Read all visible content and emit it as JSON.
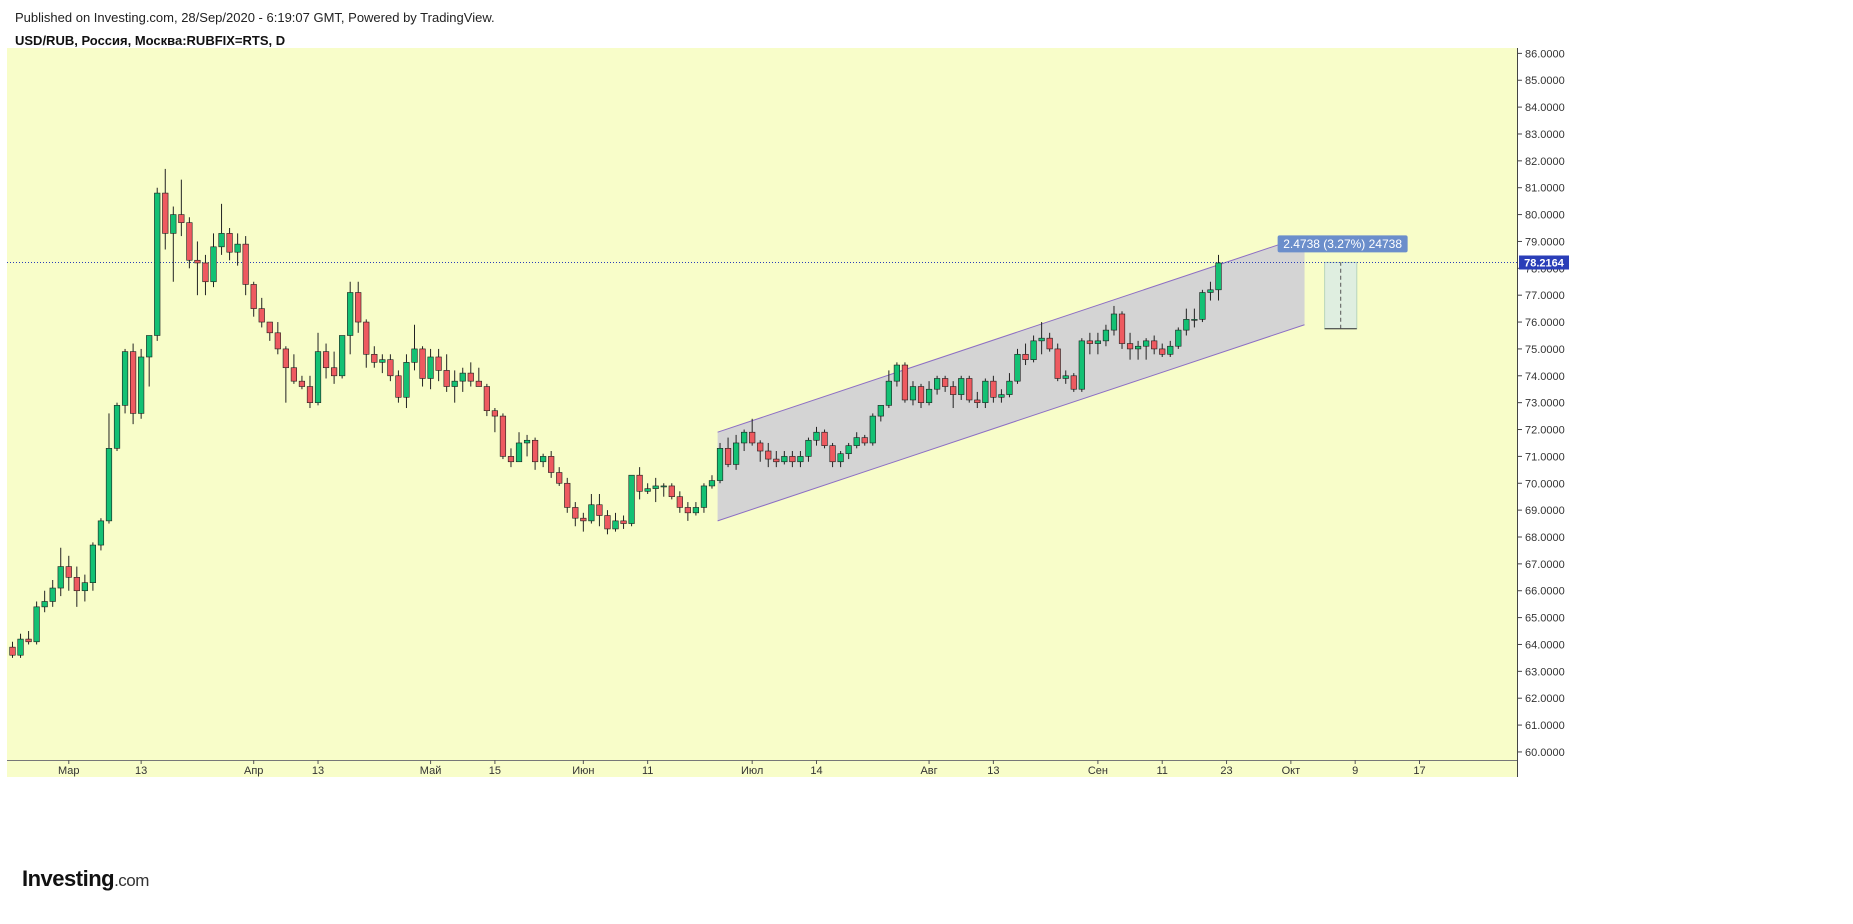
{
  "header": {
    "published": "Published on Investing.com, 28/Sep/2020 - 6:19:07 GMT, Powered by TradingView.",
    "symbol": "USD/RUB, Россия, Москва:RUBFIX=RTS, D"
  },
  "logo": {
    "main": "Investing",
    "suffix": ".com"
  },
  "colors": {
    "background": "#f8fdc9",
    "up": "#13c174",
    "down": "#ee5a60",
    "wick": "#222222",
    "price_line": "#2a3eb8",
    "channel_fill": "#cfcfd5",
    "channel_line": "#8c6ec4",
    "measure_fill": "#dfeee0",
    "measure_label": "#6b8ecb"
  },
  "chart_data": {
    "type": "candlestick",
    "ylim": [
      59.7,
      86.2
    ],
    "y_ticks": [
      "60.0000",
      "61.0000",
      "62.0000",
      "63.0000",
      "64.0000",
      "65.0000",
      "66.0000",
      "67.0000",
      "68.0000",
      "69.0000",
      "70.0000",
      "71.0000",
      "72.0000",
      "73.0000",
      "74.0000",
      "75.0000",
      "76.0000",
      "77.0000",
      "78.0000",
      "79.0000",
      "80.0000",
      "81.0000",
      "82.0000",
      "83.0000",
      "84.0000",
      "85.0000",
      "86.0000"
    ],
    "x_labels": [
      {
        "label": "Мар",
        "i": 7
      },
      {
        "label": "13",
        "i": 16
      },
      {
        "label": "Апр",
        "i": 30
      },
      {
        "label": "13",
        "i": 38
      },
      {
        "label": "Май",
        "i": 52
      },
      {
        "label": "15",
        "i": 60
      },
      {
        "label": "Июн",
        "i": 71
      },
      {
        "label": "11",
        "i": 79
      },
      {
        "label": "Июл",
        "i": 92
      },
      {
        "label": "14",
        "i": 100
      },
      {
        "label": "Авг",
        "i": 114
      },
      {
        "label": "13",
        "i": 122
      },
      {
        "label": "Сен",
        "i": 135
      },
      {
        "label": "11",
        "i": 143
      },
      {
        "label": "23",
        "i": 151
      },
      {
        "label": "Окт",
        "i": 159
      },
      {
        "label": "9",
        "i": 167
      },
      {
        "label": "17",
        "i": 175
      }
    ],
    "last_price": "78.2164",
    "last_value": 78.2164,
    "candles": [
      {
        "o": 63.9,
        "h": 64.1,
        "l": 63.5,
        "c": 63.6
      },
      {
        "o": 63.6,
        "h": 64.4,
        "l": 63.5,
        "c": 64.2
      },
      {
        "o": 64.2,
        "h": 64.5,
        "l": 64.0,
        "c": 64.1
      },
      {
        "o": 64.1,
        "h": 65.6,
        "l": 64.0,
        "c": 65.4
      },
      {
        "o": 65.4,
        "h": 66.0,
        "l": 65.2,
        "c": 65.6
      },
      {
        "o": 65.6,
        "h": 66.4,
        "l": 65.4,
        "c": 66.1
      },
      {
        "o": 66.1,
        "h": 67.6,
        "l": 65.8,
        "c": 66.9
      },
      {
        "o": 66.9,
        "h": 67.3,
        "l": 66.0,
        "c": 66.5
      },
      {
        "o": 66.5,
        "h": 66.9,
        "l": 65.4,
        "c": 66.0
      },
      {
        "o": 66.0,
        "h": 66.6,
        "l": 65.6,
        "c": 66.3
      },
      {
        "o": 66.3,
        "h": 67.8,
        "l": 66.0,
        "c": 67.7
      },
      {
        "o": 67.7,
        "h": 68.7,
        "l": 67.5,
        "c": 68.6
      },
      {
        "o": 68.6,
        "h": 72.6,
        "l": 68.5,
        "c": 71.3
      },
      {
        "o": 71.3,
        "h": 73.0,
        "l": 71.2,
        "c": 72.9
      },
      {
        "o": 72.9,
        "h": 75.0,
        "l": 72.6,
        "c": 74.9
      },
      {
        "o": 74.9,
        "h": 75.2,
        "l": 72.2,
        "c": 72.6
      },
      {
        "o": 72.6,
        "h": 75.0,
        "l": 72.4,
        "c": 74.7
      },
      {
        "o": 74.7,
        "h": 75.5,
        "l": 73.6,
        "c": 75.5
      },
      {
        "o": 75.5,
        "h": 81.0,
        "l": 75.3,
        "c": 80.8
      },
      {
        "o": 80.8,
        "h": 81.7,
        "l": 78.7,
        "c": 79.3
      },
      {
        "o": 79.3,
        "h": 80.3,
        "l": 77.5,
        "c": 80.0
      },
      {
        "o": 80.0,
        "h": 81.3,
        "l": 79.2,
        "c": 79.7
      },
      {
        "o": 79.7,
        "h": 79.9,
        "l": 78.0,
        "c": 78.3
      },
      {
        "o": 78.3,
        "h": 79.0,
        "l": 77.0,
        "c": 78.2
      },
      {
        "o": 78.2,
        "h": 78.5,
        "l": 77.0,
        "c": 77.5
      },
      {
        "o": 77.5,
        "h": 79.3,
        "l": 77.3,
        "c": 78.8
      },
      {
        "o": 78.8,
        "h": 80.4,
        "l": 78.5,
        "c": 79.3
      },
      {
        "o": 79.3,
        "h": 79.5,
        "l": 78.3,
        "c": 78.6
      },
      {
        "o": 78.6,
        "h": 79.3,
        "l": 78.1,
        "c": 78.9
      },
      {
        "o": 78.9,
        "h": 79.2,
        "l": 77.0,
        "c": 77.4
      },
      {
        "o": 77.4,
        "h": 77.5,
        "l": 76.2,
        "c": 76.5
      },
      {
        "o": 76.5,
        "h": 76.9,
        "l": 75.8,
        "c": 76.0
      },
      {
        "o": 76.0,
        "h": 76.0,
        "l": 75.3,
        "c": 75.6
      },
      {
        "o": 75.6,
        "h": 76.0,
        "l": 74.8,
        "c": 75.0
      },
      {
        "o": 75.0,
        "h": 75.1,
        "l": 73.0,
        "c": 74.3
      },
      {
        "o": 74.3,
        "h": 74.8,
        "l": 73.7,
        "c": 73.8
      },
      {
        "o": 73.8,
        "h": 74.0,
        "l": 73.5,
        "c": 73.6
      },
      {
        "o": 73.6,
        "h": 74.0,
        "l": 72.8,
        "c": 73.0
      },
      {
        "o": 73.0,
        "h": 75.6,
        "l": 72.9,
        "c": 74.9
      },
      {
        "o": 74.9,
        "h": 75.2,
        "l": 73.9,
        "c": 74.3
      },
      {
        "o": 74.3,
        "h": 74.9,
        "l": 73.7,
        "c": 74.0
      },
      {
        "o": 74.0,
        "h": 75.5,
        "l": 73.9,
        "c": 75.5
      },
      {
        "o": 75.5,
        "h": 77.5,
        "l": 74.8,
        "c": 77.1
      },
      {
        "o": 77.1,
        "h": 77.5,
        "l": 75.6,
        "c": 76.0
      },
      {
        "o": 76.0,
        "h": 76.1,
        "l": 74.3,
        "c": 74.8
      },
      {
        "o": 74.8,
        "h": 75.1,
        "l": 74.3,
        "c": 74.5
      },
      {
        "o": 74.5,
        "h": 74.8,
        "l": 74.1,
        "c": 74.6
      },
      {
        "o": 74.6,
        "h": 74.8,
        "l": 73.8,
        "c": 74.0
      },
      {
        "o": 74.0,
        "h": 74.2,
        "l": 73.0,
        "c": 73.2
      },
      {
        "o": 73.2,
        "h": 74.8,
        "l": 72.8,
        "c": 74.5
      },
      {
        "o": 74.5,
        "h": 75.9,
        "l": 74.2,
        "c": 75.0
      },
      {
        "o": 75.0,
        "h": 75.1,
        "l": 73.6,
        "c": 73.9
      },
      {
        "o": 73.9,
        "h": 75.0,
        "l": 73.5,
        "c": 74.7
      },
      {
        "o": 74.7,
        "h": 75.0,
        "l": 73.8,
        "c": 74.2
      },
      {
        "o": 74.2,
        "h": 74.8,
        "l": 73.4,
        "c": 73.6
      },
      {
        "o": 73.6,
        "h": 74.2,
        "l": 73.0,
        "c": 73.8
      },
      {
        "o": 73.8,
        "h": 74.3,
        "l": 73.4,
        "c": 74.1
      },
      {
        "o": 74.1,
        "h": 74.5,
        "l": 73.6,
        "c": 73.8
      },
      {
        "o": 73.8,
        "h": 74.3,
        "l": 73.6,
        "c": 73.6
      },
      {
        "o": 73.6,
        "h": 73.7,
        "l": 72.5,
        "c": 72.7
      },
      {
        "o": 72.7,
        "h": 72.8,
        "l": 71.9,
        "c": 72.5
      },
      {
        "o": 72.5,
        "h": 72.6,
        "l": 70.9,
        "c": 71.0
      },
      {
        "o": 71.0,
        "h": 71.3,
        "l": 70.6,
        "c": 70.8
      },
      {
        "o": 70.8,
        "h": 71.9,
        "l": 70.8,
        "c": 71.5
      },
      {
        "o": 71.5,
        "h": 71.8,
        "l": 71.0,
        "c": 71.6
      },
      {
        "o": 71.6,
        "h": 71.7,
        "l": 70.5,
        "c": 70.8
      },
      {
        "o": 70.8,
        "h": 71.1,
        "l": 70.6,
        "c": 71.0
      },
      {
        "o": 71.0,
        "h": 71.2,
        "l": 70.2,
        "c": 70.4
      },
      {
        "o": 70.4,
        "h": 70.6,
        "l": 69.9,
        "c": 70.0
      },
      {
        "o": 70.0,
        "h": 70.2,
        "l": 68.9,
        "c": 69.1
      },
      {
        "o": 69.1,
        "h": 69.3,
        "l": 68.4,
        "c": 68.7
      },
      {
        "o": 68.7,
        "h": 68.9,
        "l": 68.2,
        "c": 68.6
      },
      {
        "o": 68.6,
        "h": 69.6,
        "l": 68.5,
        "c": 69.2
      },
      {
        "o": 69.2,
        "h": 69.6,
        "l": 68.4,
        "c": 68.8
      },
      {
        "o": 68.8,
        "h": 69.0,
        "l": 68.1,
        "c": 68.3
      },
      {
        "o": 68.3,
        "h": 68.9,
        "l": 68.2,
        "c": 68.6
      },
      {
        "o": 68.6,
        "h": 68.8,
        "l": 68.3,
        "c": 68.5
      },
      {
        "o": 68.5,
        "h": 70.3,
        "l": 68.4,
        "c": 70.3
      },
      {
        "o": 70.3,
        "h": 70.6,
        "l": 69.4,
        "c": 69.7
      },
      {
        "o": 69.7,
        "h": 70.0,
        "l": 69.6,
        "c": 69.8
      },
      {
        "o": 69.8,
        "h": 70.2,
        "l": 69.3,
        "c": 69.9
      },
      {
        "o": 69.9,
        "h": 70.0,
        "l": 69.5,
        "c": 69.9
      },
      {
        "o": 69.9,
        "h": 70.0,
        "l": 69.4,
        "c": 69.5
      },
      {
        "o": 69.5,
        "h": 69.7,
        "l": 68.9,
        "c": 69.1
      },
      {
        "o": 69.1,
        "h": 69.3,
        "l": 68.6,
        "c": 68.9
      },
      {
        "o": 68.9,
        "h": 69.3,
        "l": 68.8,
        "c": 69.1
      },
      {
        "o": 69.1,
        "h": 70.0,
        "l": 68.9,
        "c": 69.9
      },
      {
        "o": 69.9,
        "h": 70.3,
        "l": 69.8,
        "c": 70.1
      },
      {
        "o": 70.1,
        "h": 71.5,
        "l": 70.0,
        "c": 71.3
      },
      {
        "o": 71.3,
        "h": 71.7,
        "l": 70.6,
        "c": 70.7
      },
      {
        "o": 70.7,
        "h": 71.8,
        "l": 70.5,
        "c": 71.5
      },
      {
        "o": 71.5,
        "h": 72.0,
        "l": 71.2,
        "c": 71.9
      },
      {
        "o": 71.9,
        "h": 72.4,
        "l": 71.4,
        "c": 71.5
      },
      {
        "o": 71.5,
        "h": 71.6,
        "l": 70.8,
        "c": 71.2
      },
      {
        "o": 71.2,
        "h": 71.5,
        "l": 70.6,
        "c": 70.9
      },
      {
        "o": 70.9,
        "h": 71.2,
        "l": 70.6,
        "c": 70.8
      },
      {
        "o": 70.8,
        "h": 71.2,
        "l": 70.7,
        "c": 71.0
      },
      {
        "o": 71.0,
        "h": 71.2,
        "l": 70.6,
        "c": 70.8
      },
      {
        "o": 70.8,
        "h": 71.2,
        "l": 70.6,
        "c": 71.0
      },
      {
        "o": 71.0,
        "h": 71.7,
        "l": 70.8,
        "c": 71.6
      },
      {
        "o": 71.6,
        "h": 72.1,
        "l": 71.4,
        "c": 71.9
      },
      {
        "o": 71.9,
        "h": 72.0,
        "l": 71.3,
        "c": 71.4
      },
      {
        "o": 71.4,
        "h": 71.5,
        "l": 70.6,
        "c": 70.8
      },
      {
        "o": 70.8,
        "h": 71.2,
        "l": 70.6,
        "c": 71.1
      },
      {
        "o": 71.1,
        "h": 71.5,
        "l": 70.9,
        "c": 71.4
      },
      {
        "o": 71.4,
        "h": 71.9,
        "l": 71.3,
        "c": 71.7
      },
      {
        "o": 71.7,
        "h": 71.8,
        "l": 71.4,
        "c": 71.5
      },
      {
        "o": 71.5,
        "h": 72.6,
        "l": 71.4,
        "c": 72.5
      },
      {
        "o": 72.5,
        "h": 72.9,
        "l": 72.3,
        "c": 72.9
      },
      {
        "o": 72.9,
        "h": 74.2,
        "l": 72.8,
        "c": 73.8
      },
      {
        "o": 73.8,
        "h": 74.5,
        "l": 73.6,
        "c": 74.4
      },
      {
        "o": 74.4,
        "h": 74.5,
        "l": 73.0,
        "c": 73.1
      },
      {
        "o": 73.1,
        "h": 73.8,
        "l": 72.9,
        "c": 73.6
      },
      {
        "o": 73.6,
        "h": 73.7,
        "l": 72.8,
        "c": 73.0
      },
      {
        "o": 73.0,
        "h": 73.8,
        "l": 72.9,
        "c": 73.5
      },
      {
        "o": 73.5,
        "h": 74.0,
        "l": 73.3,
        "c": 73.9
      },
      {
        "o": 73.9,
        "h": 74.0,
        "l": 73.4,
        "c": 73.6
      },
      {
        "o": 73.6,
        "h": 73.8,
        "l": 72.8,
        "c": 73.3
      },
      {
        "o": 73.3,
        "h": 74.0,
        "l": 73.1,
        "c": 73.9
      },
      {
        "o": 73.9,
        "h": 74.0,
        "l": 73.0,
        "c": 73.1
      },
      {
        "o": 73.1,
        "h": 73.4,
        "l": 72.8,
        "c": 73.0
      },
      {
        "o": 73.0,
        "h": 73.9,
        "l": 72.8,
        "c": 73.8
      },
      {
        "o": 73.8,
        "h": 74.0,
        "l": 73.0,
        "c": 73.2
      },
      {
        "o": 73.2,
        "h": 73.5,
        "l": 73.0,
        "c": 73.3
      },
      {
        "o": 73.3,
        "h": 74.1,
        "l": 73.2,
        "c": 73.8
      },
      {
        "o": 73.8,
        "h": 75.0,
        "l": 73.7,
        "c": 74.8
      },
      {
        "o": 74.8,
        "h": 75.2,
        "l": 74.4,
        "c": 74.6
      },
      {
        "o": 74.6,
        "h": 75.5,
        "l": 74.5,
        "c": 75.3
      },
      {
        "o": 75.3,
        "h": 76.0,
        "l": 74.8,
        "c": 75.4
      },
      {
        "o": 75.4,
        "h": 75.6,
        "l": 74.9,
        "c": 75.0
      },
      {
        "o": 75.0,
        "h": 75.2,
        "l": 73.8,
        "c": 73.9
      },
      {
        "o": 73.9,
        "h": 74.2,
        "l": 73.7,
        "c": 74.0
      },
      {
        "o": 74.0,
        "h": 74.1,
        "l": 73.4,
        "c": 73.5
      },
      {
        "o": 73.5,
        "h": 75.4,
        "l": 73.4,
        "c": 75.3
      },
      {
        "o": 75.3,
        "h": 75.6,
        "l": 74.8,
        "c": 75.2
      },
      {
        "o": 75.2,
        "h": 75.6,
        "l": 74.8,
        "c": 75.3
      },
      {
        "o": 75.3,
        "h": 75.9,
        "l": 75.1,
        "c": 75.7
      },
      {
        "o": 75.7,
        "h": 76.6,
        "l": 75.5,
        "c": 76.3
      },
      {
        "o": 76.3,
        "h": 76.4,
        "l": 75.0,
        "c": 75.2
      },
      {
        "o": 75.2,
        "h": 75.6,
        "l": 74.6,
        "c": 75.0
      },
      {
        "o": 75.0,
        "h": 75.3,
        "l": 74.6,
        "c": 75.1
      },
      {
        "o": 75.1,
        "h": 75.4,
        "l": 74.6,
        "c": 75.3
      },
      {
        "o": 75.3,
        "h": 75.5,
        "l": 74.8,
        "c": 75.0
      },
      {
        "o": 75.0,
        "h": 75.2,
        "l": 74.7,
        "c": 74.8
      },
      {
        "o": 74.8,
        "h": 75.3,
        "l": 74.7,
        "c": 75.1
      },
      {
        "o": 75.1,
        "h": 75.8,
        "l": 75.0,
        "c": 75.7
      },
      {
        "o": 75.7,
        "h": 76.5,
        "l": 75.5,
        "c": 76.1
      },
      {
        "o": 76.1,
        "h": 76.5,
        "l": 75.8,
        "c": 76.1
      },
      {
        "o": 76.1,
        "h": 77.2,
        "l": 76.0,
        "c": 77.1
      },
      {
        "o": 77.1,
        "h": 77.5,
        "l": 76.8,
        "c": 77.2
      },
      {
        "o": 77.2,
        "h": 78.5,
        "l": 76.8,
        "c": 78.2
      }
    ],
    "channel": {
      "start_i": 87.7,
      "end_i": 160.7,
      "lower_start": 68.6,
      "lower_end": 75.9,
      "upper_start": 71.9,
      "upper_end": 79.2
    },
    "measure": {
      "i0": 163.2,
      "i1": 167.2,
      "low": 75.75,
      "high": 78.22,
      "label": "2.4738 (3.27%) 24738"
    }
  }
}
